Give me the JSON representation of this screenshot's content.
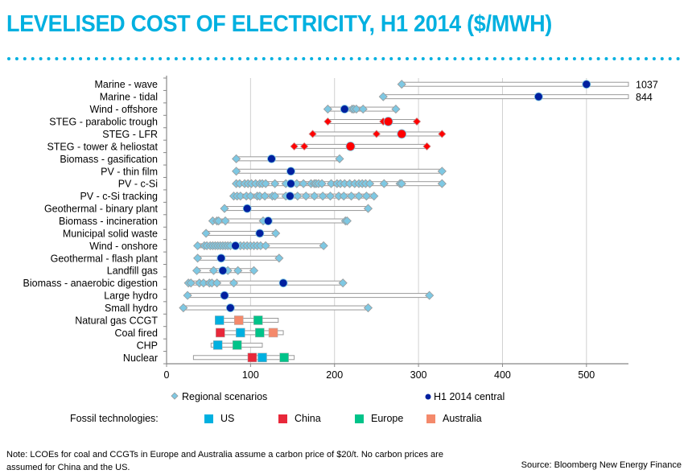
{
  "title": "LEVELISED COST OF ELECTRICITY, H1 2014 ($/MWH)",
  "colors": {
    "accent": "#00b0e0",
    "regional": "#7ec8e3",
    "central": "#00209f",
    "steg": "#ff0000",
    "us": "#00b0e0",
    "china": "#e8283a",
    "europe": "#00c389",
    "australia": "#f4896b"
  },
  "chart_data": {
    "type": "scatter",
    "title": "LEVELISED COST OF ELECTRICITY, H1 2014 ($/MWH)",
    "xlabel": "",
    "ylabel": "",
    "xlim": [
      0,
      550
    ],
    "xticks": [
      0,
      100,
      200,
      300,
      400,
      500
    ],
    "grid": true,
    "legend": [
      {
        "key": "regional",
        "label": "Regional scenarios",
        "marker": "diamond"
      },
      {
        "key": "central",
        "label": "H1 2014 central",
        "marker": "circle"
      }
    ],
    "fossil_legend_title": "Fossil technologies:",
    "fossil_legend": [
      {
        "key": "us",
        "label": "US"
      },
      {
        "key": "china",
        "label": "China"
      },
      {
        "key": "europe",
        "label": "Europe"
      },
      {
        "key": "australia",
        "label": "Australia"
      }
    ],
    "rows": [
      {
        "name": "Marine - wave",
        "range": [
          280,
          550
        ],
        "overflow_label": "1037",
        "style": "blue",
        "scenarios": [
          280
        ],
        "central": 500
      },
      {
        "name": "Marine - tidal",
        "range": [
          258,
          550
        ],
        "overflow_label": "844",
        "style": "blue",
        "scenarios": [
          258
        ],
        "central": 443
      },
      {
        "name": "Wind - offshore",
        "range": [
          192,
          273
        ],
        "style": "blue",
        "scenarios": [
          192,
          221,
          223,
          226,
          234,
          273
        ],
        "central": 212
      },
      {
        "name": "STEG - parabolic trough",
        "range": [
          192,
          298
        ],
        "style": "red",
        "scenarios": [
          192,
          258,
          298
        ],
        "central": 264
      },
      {
        "name": "STEG - LFR",
        "range": [
          174,
          328
        ],
        "style": "red",
        "scenarios": [
          174,
          250,
          328
        ],
        "central": 280
      },
      {
        "name": "STEG - tower & heliostat",
        "range": [
          152,
          310
        ],
        "style": "red",
        "scenarios": [
          152,
          164,
          310
        ],
        "central": 219
      },
      {
        "name": "Biomass - gasification",
        "range": [
          83,
          206
        ],
        "style": "blue",
        "scenarios": [
          83,
          206
        ],
        "central": 125
      },
      {
        "name": "PV - thin film",
        "range": [
          83,
          328
        ],
        "style": "blue",
        "scenarios": [
          83,
          328
        ],
        "central": 148
      },
      {
        "name": "PV - c-Si",
        "range": [
          83,
          328
        ],
        "style": "blue",
        "scenarios": [
          83,
          87,
          93,
          97,
          101,
          106,
          111,
          114,
          118,
          129,
          142,
          155,
          163,
          172,
          176,
          178,
          181,
          185,
          196,
          203,
          207,
          212,
          218,
          224,
          229,
          233,
          237,
          242,
          259,
          278,
          280,
          328
        ],
        "central": 148
      },
      {
        "name": "PV - c-Si tracking",
        "range": [
          80,
          247
        ],
        "style": "blue",
        "scenarios": [
          80,
          84,
          88,
          95,
          100,
          108,
          111,
          117,
          126,
          129,
          142,
          156,
          166,
          176,
          186,
          195,
          205,
          211,
          220,
          229,
          238,
          247
        ],
        "central": 147
      },
      {
        "name": "Geothermal - binary plant",
        "range": [
          69,
          240
        ],
        "style": "blue",
        "scenarios": [
          69,
          240
        ],
        "central": 96
      },
      {
        "name": "Biomass - incineration",
        "range": [
          55,
          215
        ],
        "style": "blue",
        "scenarios": [
          55,
          60,
          62,
          70,
          115,
          121,
          213,
          215
        ],
        "central": 121
      },
      {
        "name": "Municipal solid waste",
        "range": [
          47,
          130
        ],
        "style": "blue",
        "scenarios": [
          47,
          130
        ],
        "central": 111
      },
      {
        "name": "Wind - onshore",
        "range": [
          37,
          187
        ],
        "style": "blue",
        "scenarios": [
          37,
          45,
          48,
          52,
          55,
          58,
          61,
          64,
          67,
          70,
          73,
          76,
          83,
          88,
          92,
          96,
          100,
          104,
          108,
          112,
          118,
          187
        ],
        "central": 82
      },
      {
        "name": "Geothermal - flash plant",
        "range": [
          37,
          134
        ],
        "style": "blue",
        "scenarios": [
          37,
          134
        ],
        "central": 65
      },
      {
        "name": "Landfill gas",
        "range": [
          36,
          104
        ],
        "style": "blue",
        "scenarios": [
          36,
          56,
          73,
          85,
          104
        ],
        "central": 67
      },
      {
        "name": "Biomass - anaerobic digestion",
        "range": [
          26,
          210
        ],
        "style": "blue",
        "scenarios": [
          26,
          29,
          39,
          44,
          51,
          54,
          60,
          80,
          210
        ],
        "central": 139
      },
      {
        "name": "Large hydro",
        "range": [
          25,
          313
        ],
        "style": "blue",
        "scenarios": [
          25,
          313
        ],
        "central": 69
      },
      {
        "name": "Small hydro",
        "range": [
          20,
          240
        ],
        "style": "blue",
        "scenarios": [
          20,
          240
        ],
        "central": 76
      },
      {
        "name": "Natural gas CCGT",
        "range": [
          62,
          133
        ],
        "style": "fossil",
        "points": [
          {
            "region": "us",
            "value": 63
          },
          {
            "region": "australia",
            "value": 86
          },
          {
            "region": "europe",
            "value": 109
          }
        ]
      },
      {
        "name": "Coal fired",
        "range": [
          62,
          139
        ],
        "style": "fossil",
        "points": [
          {
            "region": "china",
            "value": 64
          },
          {
            "region": "us",
            "value": 88
          },
          {
            "region": "europe",
            "value": 111
          },
          {
            "region": "australia",
            "value": 127
          }
        ]
      },
      {
        "name": "CHP",
        "range": [
          53,
          114
        ],
        "style": "fossil",
        "points": [
          {
            "region": "us",
            "value": 61
          },
          {
            "region": "europe",
            "value": 84
          }
        ]
      },
      {
        "name": "Nuclear",
        "range": [
          32,
          152
        ],
        "style": "fossil",
        "points": [
          {
            "region": "china",
            "value": 102
          },
          {
            "region": "us",
            "value": 114
          },
          {
            "region": "europe",
            "value": 140
          }
        ]
      }
    ]
  },
  "footer": {
    "note_line1": "Note: LCOEs for coal and CCGTs in Europe and Australia assume a carbon price of $20/t. No carbon prices are",
    "note_line2": "assumed for China and the US.",
    "source": "Source: Bloomberg New Energy Finance"
  }
}
